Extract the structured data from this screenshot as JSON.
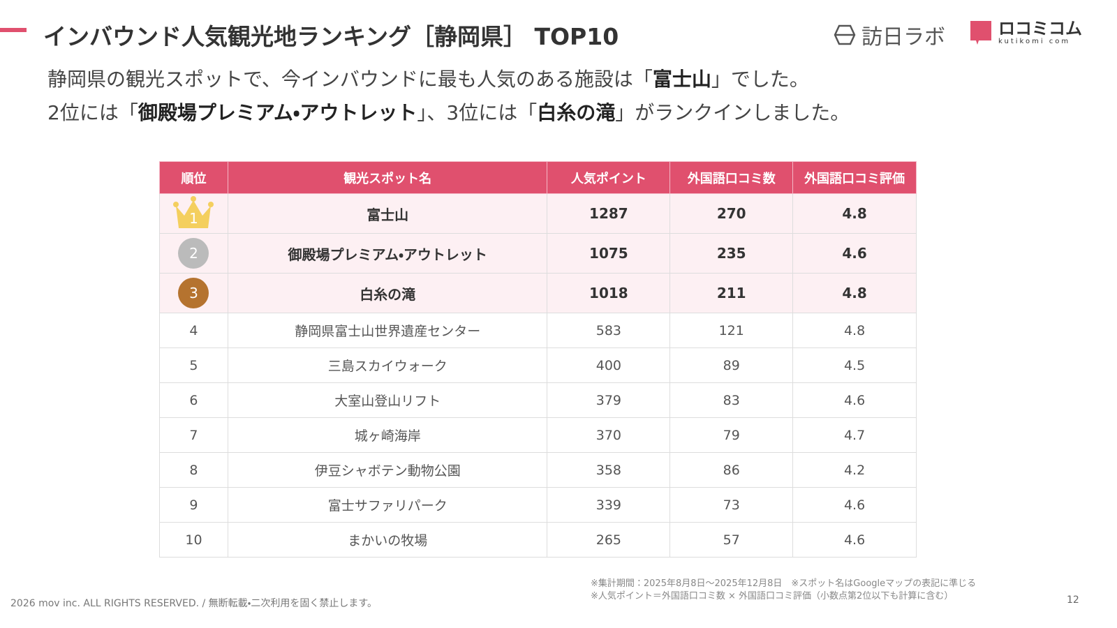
{
  "header": {
    "title": "インバウンド人気観光地ランキング［静岡県］ TOP10",
    "logo_main": "訪日ラボ",
    "logo_sub": "ロコミコム",
    "logo_sub_en": "kutikomi com"
  },
  "intro": {
    "line1": [
      "静岡県の観光スポットで、今インバウンドに最も人気のある施設は「",
      "富士山",
      "」でした。"
    ],
    "line2": [
      "2位には「",
      "御殿場プレミアム・アウトレット",
      "」、3位には「",
      "白糸の滝",
      "」がランクインしました。"
    ]
  },
  "table": {
    "columns": [
      "順位",
      "観光スポット名",
      "人気ポイント",
      "外国語口コミ数",
      "外国語口コミ評価"
    ],
    "rows": [
      [
        1,
        "富士山",
        1287,
        270,
        4.8
      ],
      [
        2,
        "御殿場プレミアム・アウトレット",
        1075,
        235,
        4.6
      ],
      [
        3,
        "白糸の滝",
        1018,
        211,
        4.8
      ],
      [
        4,
        "静岡県富士山世界遺産センター",
        583,
        121,
        4.8
      ],
      [
        5,
        "三島スカイウォーク",
        400,
        89,
        4.5
      ],
      [
        6,
        "大室山登山リフト",
        379,
        83,
        4.6
      ],
      [
        7,
        "城ヶ崎海岸",
        370,
        79,
        4.7
      ],
      [
        8,
        "伊豆シャボテン動物公園",
        358,
        86,
        4.2
      ],
      [
        9,
        "富士サファリパーク",
        339,
        73,
        4.6
      ],
      [
        10,
        "まかいの牧場",
        265,
        57,
        4.6
      ]
    ]
  },
  "footer": {
    "notes": [
      "※集計期間：2025年8月8日〜2025年12月8日　※スポット名はGoogleマップの表記に準じる",
      "※人気ポイント＝外国語口コミ数 × 外国語口コミ評価（小数点第2位以下も計算に含む）"
    ],
    "copyright": "2026 mov inc. ALL RIGHTS RESERVED. / 無断転載・二次利用を固く禁止します。",
    "page": "12"
  }
}
